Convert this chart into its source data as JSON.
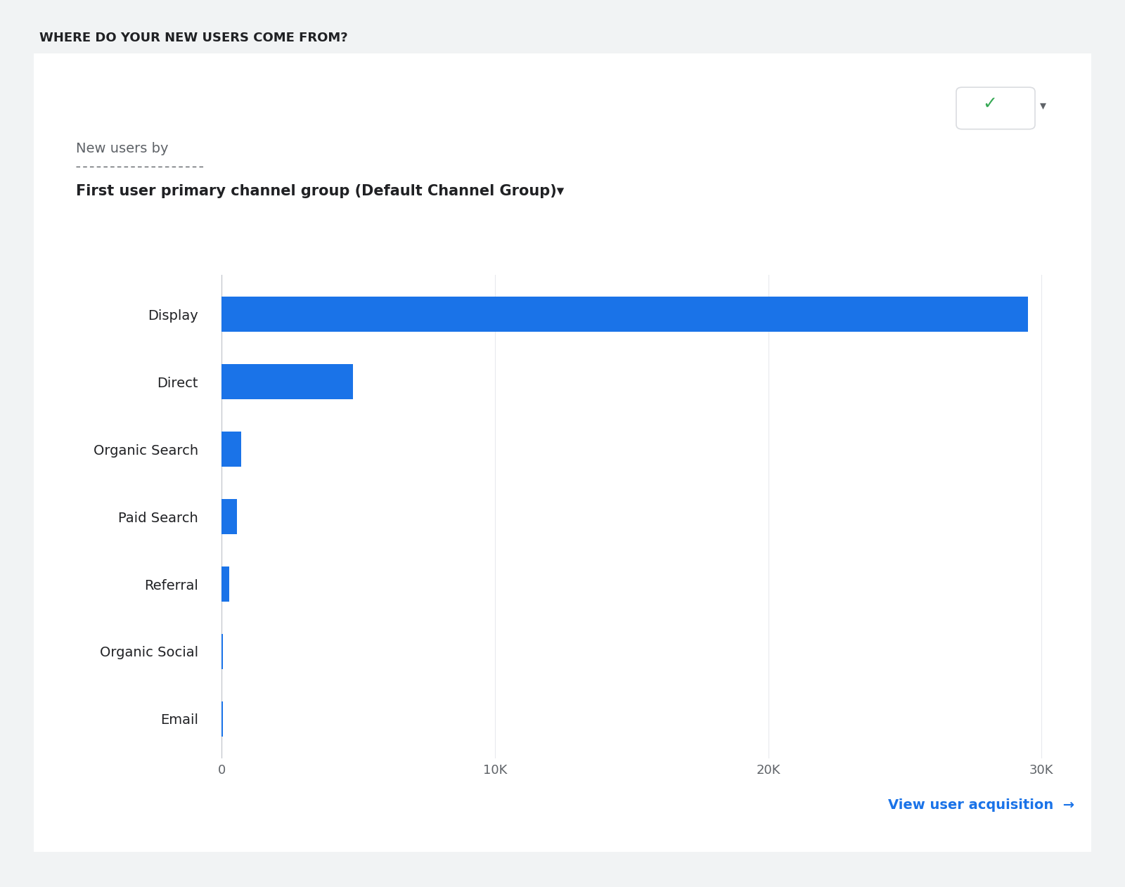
{
  "title": "WHERE DO YOUR NEW USERS COME FROM?",
  "subtitle_line1": "New users by",
  "subtitle_line2": "First user primary channel group (Default Channel Group)▾",
  "categories": [
    "Display",
    "Direct",
    "Organic Search",
    "Paid Search",
    "Referral",
    "Organic Social",
    "Email"
  ],
  "values": [
    29500,
    4800,
    700,
    550,
    280,
    50,
    30
  ],
  "bar_color": "#1a73e8",
  "background_color": "#f1f3f4",
  "card_color": "#ffffff",
  "card_edge_color": "#dadce0",
  "xlim": [
    -500,
    31000
  ],
  "xticks": [
    0,
    10000,
    20000,
    30000
  ],
  "xtick_labels": [
    "0",
    "10K",
    "20K",
    "30K"
  ],
  "link_text": "View user acquisition  →",
  "link_color": "#1a73e8",
  "title_fontsize": 13,
  "subtitle1_fontsize": 14,
  "subtitle2_fontsize": 15,
  "label_fontsize": 14,
  "tick_fontsize": 13,
  "grid_color": "#e8eaed",
  "text_dark": "#202124",
  "text_medium": "#5f6368"
}
